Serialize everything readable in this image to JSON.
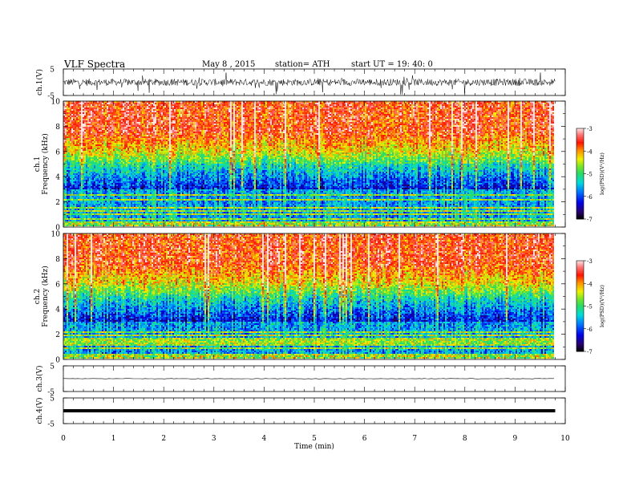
{
  "header": {
    "title": "VLF  Spectra",
    "date": "May 8  , 2015",
    "station": "station= ATH",
    "start": "start  UT =   19: 40: 0"
  },
  "chart_data": [
    {
      "type": "line",
      "panel": "ch1-waveform",
      "ylabel": "ch.1(V)",
      "ylim": [
        -5,
        5
      ],
      "yticks": [
        "5",
        "-5"
      ],
      "xlim": [
        0,
        10
      ],
      "x_end": 9.8,
      "amplitude_note_v": [
        -3,
        2.5
      ]
    },
    {
      "type": "heatmap",
      "panel": "ch1-spectrogram",
      "ylabel": "ch.1",
      "ylabel2": "Frequency  (kHz)",
      "ylim": [
        0,
        10
      ],
      "yticks": [
        "0",
        "2",
        "4",
        "6",
        "8",
        "10"
      ],
      "xlim": [
        0,
        10
      ],
      "x_end": 9.8,
      "colorbar": {
        "label": "log(PSD)(V²/Hz)",
        "range": [
          -7,
          -3
        ],
        "ticks": [
          "-3",
          "-4",
          "-5",
          "-6",
          "-7"
        ]
      }
    },
    {
      "type": "heatmap",
      "panel": "ch2-spectrogram",
      "ylabel": "ch.2",
      "ylabel2": "Frequency  (kHz)",
      "ylim": [
        0,
        10
      ],
      "yticks": [
        "0",
        "2",
        "4",
        "6",
        "8",
        "10"
      ],
      "xlim": [
        0,
        10
      ],
      "x_end": 9.8,
      "colorbar": {
        "label": "log(PSD)(V²/Hz)",
        "range": [
          -7,
          -3
        ],
        "ticks": [
          "-3",
          "-4",
          "-5",
          "-6",
          "-7"
        ]
      }
    },
    {
      "type": "line",
      "panel": "ch3-waveform",
      "ylabel": "ch.3(V)",
      "ylim": [
        -5,
        5
      ],
      "yticks": [
        "5",
        "-5"
      ],
      "xlim": [
        0,
        10
      ],
      "x_end": 9.8
    },
    {
      "type": "line",
      "panel": "ch4-waveform",
      "ylabel": "ch.4(V)",
      "ylim": [
        -5,
        5
      ],
      "yticks": [
        "5",
        "-5"
      ],
      "xlim": [
        0,
        10
      ],
      "x_end": 9.8,
      "xlabel": "Time  (min)",
      "xticks": [
        "0",
        "1",
        "2",
        "3",
        "4",
        "5",
        "6",
        "7",
        "8",
        "9",
        "10"
      ]
    }
  ]
}
